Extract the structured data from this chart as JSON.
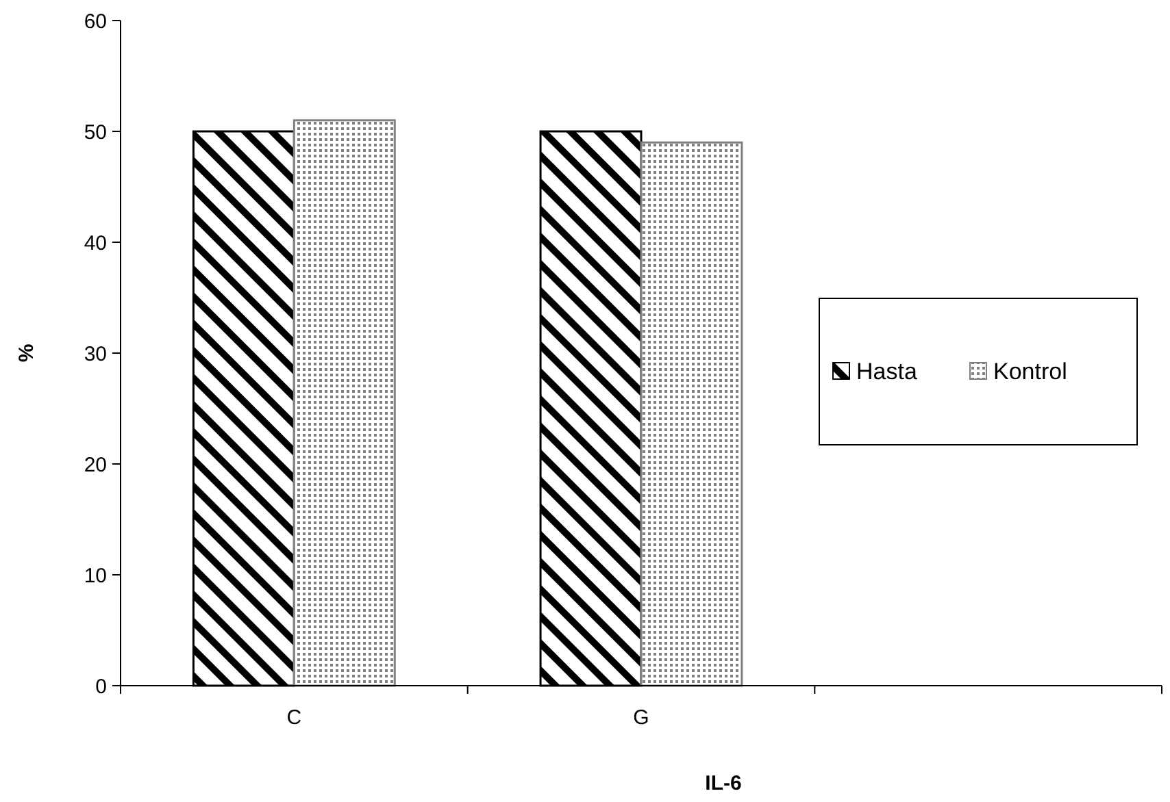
{
  "chart_data": {
    "type": "bar",
    "xlabel": "IL-6",
    "ylabel": "%",
    "categories": [
      "C",
      "G",
      null
    ],
    "series": [
      {
        "name": "Hasta",
        "color": "#000000",
        "values": [
          50,
          50,
          null
        ]
      },
      {
        "name": "Kontrol",
        "color": "#808080",
        "values": [
          51,
          49,
          null
        ]
      }
    ],
    "ylim": [
      0,
      60
    ],
    "yticks": [
      0,
      10,
      20,
      30,
      40,
      50,
      60
    ],
    "legend": "right"
  }
}
